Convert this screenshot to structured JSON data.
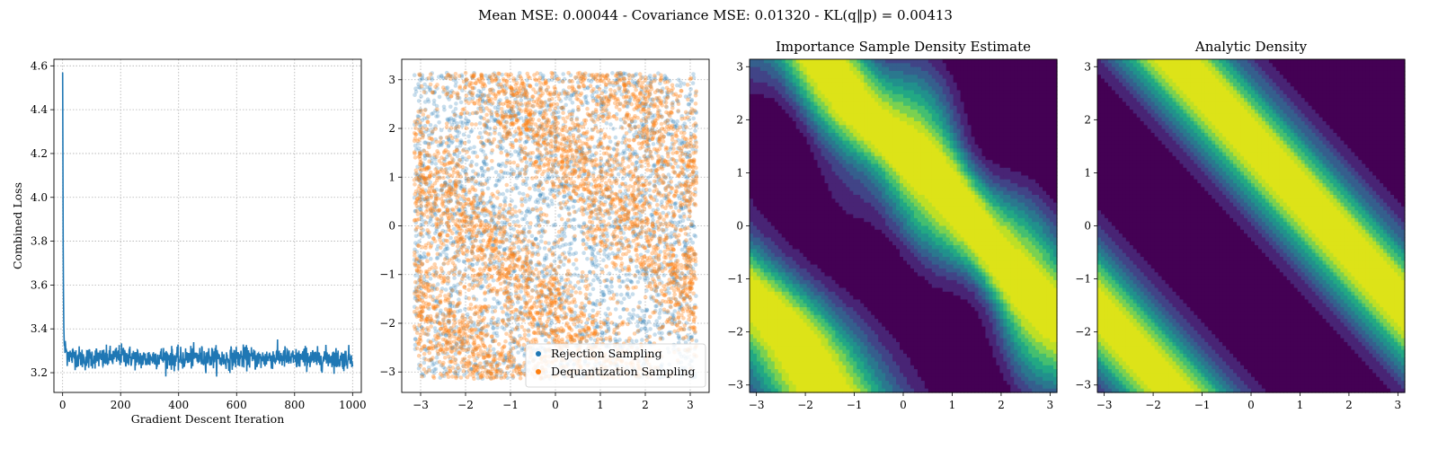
{
  "figure": {
    "suptitle": "Mean MSE: 0.00044 - Covariance MSE: 0.01320 - KL(q‖p) = 0.00413"
  },
  "chart_data": [
    {
      "type": "line",
      "title": "",
      "xlabel": "Gradient Descent Iteration",
      "ylabel": "Combined Loss",
      "xlim": [
        -30,
        1030
      ],
      "ylim": [
        3.11,
        4.63
      ],
      "xticks": [
        0,
        200,
        400,
        600,
        800,
        1000
      ],
      "yticks": [
        3.2,
        3.4,
        3.6,
        3.8,
        4.0,
        4.2,
        4.4,
        4.6
      ],
      "grid": true,
      "color": "#1f77b4",
      "series": [
        {
          "x": [
            0,
            1,
            2,
            3,
            4,
            5,
            6,
            8,
            10,
            15,
            20,
            30,
            40,
            50,
            60,
            80,
            100,
            120,
            140,
            160,
            180,
            200,
            240,
            280,
            320,
            360,
            400,
            440,
            480,
            520,
            560,
            600,
            640,
            680,
            720,
            760,
            800,
            840,
            880,
            920,
            960,
            1000
          ],
          "y": [
            4.57,
            4.2,
            3.78,
            3.58,
            3.41,
            3.36,
            3.33,
            3.3,
            3.32,
            3.28,
            3.29,
            3.27,
            3.28,
            3.27,
            3.27,
            3.26,
            3.27,
            3.27,
            3.26,
            3.27,
            3.27,
            3.28,
            3.27,
            3.26,
            3.27,
            3.27,
            3.26,
            3.27,
            3.27,
            3.27,
            3.26,
            3.27,
            3.27,
            3.26,
            3.27,
            3.27,
            3.26,
            3.27,
            3.26,
            3.27,
            3.26,
            3.27
          ]
        }
      ]
    },
    {
      "type": "scatter",
      "title": "",
      "xlim": [
        -3.42,
        3.42
      ],
      "ylim": [
        -3.42,
        3.42
      ],
      "xticks": [
        -3,
        -2,
        -1,
        0,
        1,
        2,
        3
      ],
      "yticks": [
        -3,
        -2,
        -1,
        0,
        1,
        2,
        3
      ],
      "grid": true,
      "legend_position": "lower-right",
      "series": [
        {
          "name": "Rejection Sampling",
          "color": "#1f77b4",
          "alpha": 0.25,
          "count": 3200
        },
        {
          "name": "Dequantization Sampling",
          "color": "#ff7f0e",
          "alpha": 0.35,
          "count": 4200
        }
      ]
    },
    {
      "type": "heatmap",
      "title": "Importance Sample Density Estimate",
      "xlim": [
        -3.14,
        3.14
      ],
      "ylim": [
        -3.14,
        3.14
      ],
      "xticks": [
        -3,
        -2,
        -1,
        0,
        1,
        2,
        3
      ],
      "yticks": [
        -3,
        -2,
        -1,
        0,
        1,
        2,
        3
      ],
      "colormap": [
        "#440154",
        "#482475",
        "#414487",
        "#355f8d",
        "#2a788e",
        "#21918c",
        "#22a884",
        "#44bf70",
        "#7ad151",
        "#bddf26",
        "#dde318"
      ]
    },
    {
      "type": "heatmap",
      "title": "Analytic Density",
      "xlim": [
        -3.14,
        3.14
      ],
      "ylim": [
        -3.14,
        3.14
      ],
      "xticks": [
        -3,
        -2,
        -1,
        0,
        1,
        2,
        3
      ],
      "yticks": [
        -3,
        -2,
        -1,
        0,
        1,
        2,
        3
      ],
      "colormap": [
        "#440154",
        "#482475",
        "#414487",
        "#355f8d",
        "#2a788e",
        "#21918c",
        "#22a884",
        "#44bf70",
        "#7ad151",
        "#bddf26",
        "#dde318"
      ]
    }
  ]
}
